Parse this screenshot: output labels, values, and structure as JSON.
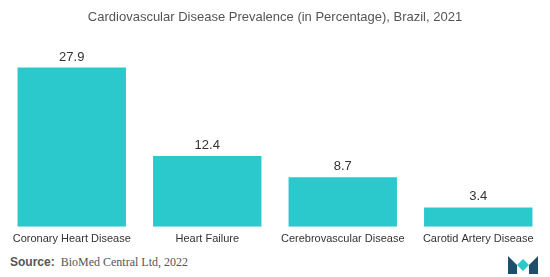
{
  "chart_data": {
    "type": "bar",
    "title": "Cardiovascular Disease Prevalence (in Percentage), Brazil, 2021",
    "categories": [
      "Coronary Heart Disease",
      "Heart Failure",
      "Cerebrovascular Disease",
      "Carotid Artery Disease"
    ],
    "values": [
      27.9,
      12.4,
      8.7,
      3.4
    ],
    "color": "#2bc8cc",
    "data_labels": true,
    "tick_labels": "x",
    "grid": false,
    "source": "Source: BioMed Central Ltd, 2022"
  }
}
